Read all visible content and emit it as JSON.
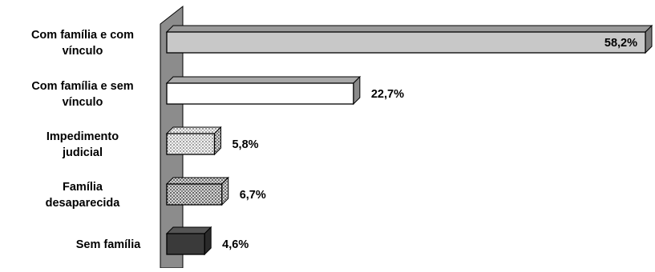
{
  "chart_data": {
    "type": "bar",
    "orientation": "horizontal",
    "style": "3d",
    "categories": [
      [
        "Com família e com",
        "vínculo"
      ],
      [
        "Com família e sem",
        "vínculo"
      ],
      [
        "Impedimento",
        "judicial"
      ],
      [
        "Família",
        "desaparecida"
      ],
      [
        "Sem família"
      ]
    ],
    "values": [
      58.2,
      22.7,
      5.8,
      6.7,
      4.6
    ],
    "value_labels": [
      "58,2%",
      "22,7%",
      "5,8%",
      "6,7%",
      "4,6%"
    ],
    "fills": [
      "light-gray",
      "white",
      "dotted-light",
      "dotted-dark",
      "dark-gray"
    ],
    "legend": "none",
    "grid": false
  }
}
